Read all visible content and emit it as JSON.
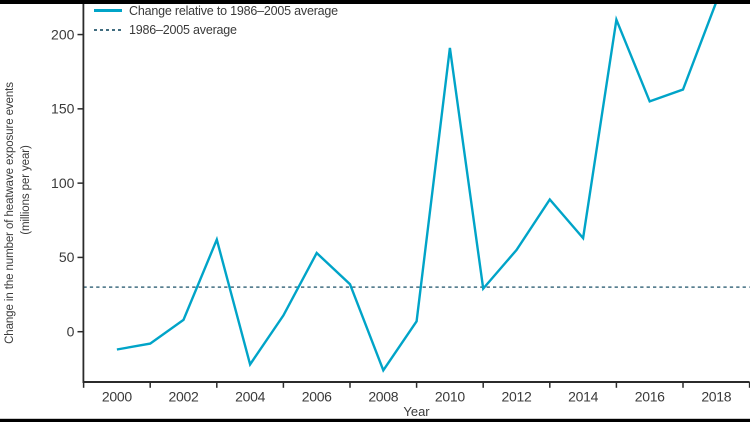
{
  "colors": {
    "series_line": "#00a4c8",
    "average_line": "#416d80",
    "axis": "#2b2b2b",
    "text": "#3a3a3a",
    "letterbox": "#000000"
  },
  "legend": {
    "items": [
      {
        "label": "Change relative to 1986–2005 average",
        "style": "solid",
        "color": "#00a4c8"
      },
      {
        "label": "1986–2005 average",
        "style": "dashed",
        "color": "#416d80"
      }
    ]
  },
  "y_axis": {
    "title_line1": "Change in the number of heatwave exposure events",
    "title_line2": "(millions per year)",
    "ticks": [
      0,
      50,
      100,
      150,
      200
    ]
  },
  "x_axis": {
    "title": "Year",
    "labeled_years": [
      2000,
      2002,
      2004,
      2006,
      2008,
      2010,
      2012,
      2014,
      2016,
      2018
    ],
    "tick_years": [
      1999,
      2001,
      2003,
      2005,
      2007,
      2009,
      2011,
      2013,
      2015,
      2017,
      2019
    ]
  },
  "chart_data": {
    "type": "line",
    "x": [
      2000,
      2001,
      2002,
      2003,
      2004,
      2005,
      2006,
      2007,
      2008,
      2009,
      2010,
      2011,
      2012,
      2013,
      2014,
      2015,
      2016,
      2017,
      2018
    ],
    "series": [
      {
        "name": "Change relative to 1986–2005 average",
        "color": "#00a4c8",
        "values": [
          -12,
          -8,
          8,
          62,
          -22,
          11,
          53,
          32,
          -26,
          7,
          191,
          29,
          55,
          89,
          63,
          210,
          155,
          163,
          222
        ]
      }
    ],
    "reference_line": {
      "name": "1986–2005 average",
      "value": 30,
      "style": "dashed",
      "color": "#416d80"
    },
    "title": "",
    "xlabel": "Year",
    "ylabel": "Change in the number of heatwave exposure events (millions per year)",
    "y_ticks": [
      0,
      50,
      100,
      150,
      200
    ],
    "ylim": [
      -34,
      222
    ],
    "xlim": [
      1999,
      2019
    ],
    "grid": false,
    "legend_position": "top-left"
  }
}
